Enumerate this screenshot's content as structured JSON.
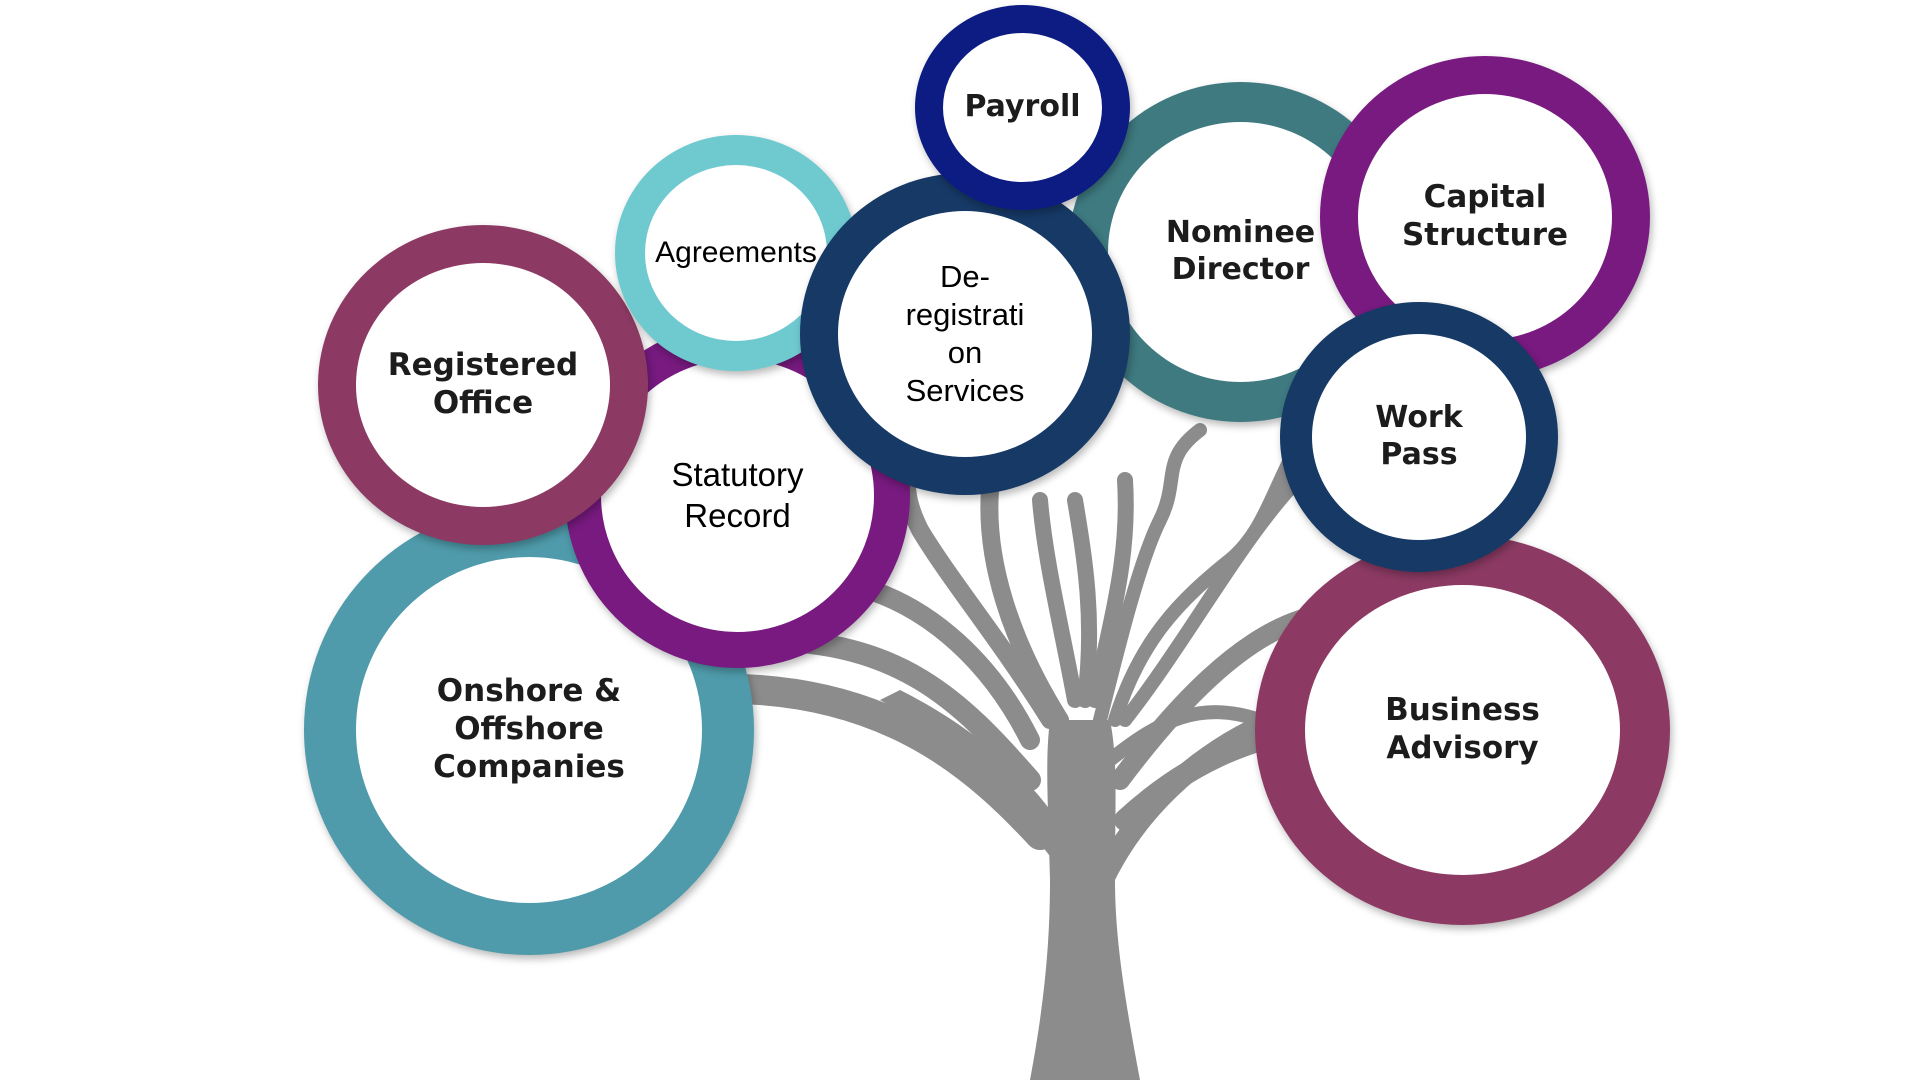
{
  "diagram": {
    "colors": {
      "trunk": "#8c8c8c",
      "teal": "#4f9bab",
      "plum": "#8c3a63",
      "purple": "#781a80",
      "light_teal": "#6fcad0",
      "navy": "#163966",
      "dark_navy": "#0c1c82",
      "dark_teal": "#3e7a80"
    },
    "nodes": [
      {
        "id": "onshore",
        "label": "Onshore &\nOffshore\nCompanies",
        "color": "teal"
      },
      {
        "id": "statutory",
        "label": "Statutory\nRecord",
        "color": "purple"
      },
      {
        "id": "registered",
        "label": "Registered\nOffice",
        "color": "plum"
      },
      {
        "id": "agreements",
        "label": "Agreements",
        "color": "light_teal"
      },
      {
        "id": "nominee",
        "label": "Nominee\nDirector",
        "color": "dark_teal"
      },
      {
        "id": "deregistration",
        "label": "De-\nregistrati\non\nServices",
        "color": "navy"
      },
      {
        "id": "payroll",
        "label": "Payroll",
        "color": "dark_navy"
      },
      {
        "id": "capital",
        "label": "Capital\nStructure",
        "color": "purple"
      },
      {
        "id": "business",
        "label": "Business\nAdvisory",
        "color": "plum"
      },
      {
        "id": "workpass",
        "label": "Work\nPass",
        "color": "navy"
      }
    ]
  }
}
